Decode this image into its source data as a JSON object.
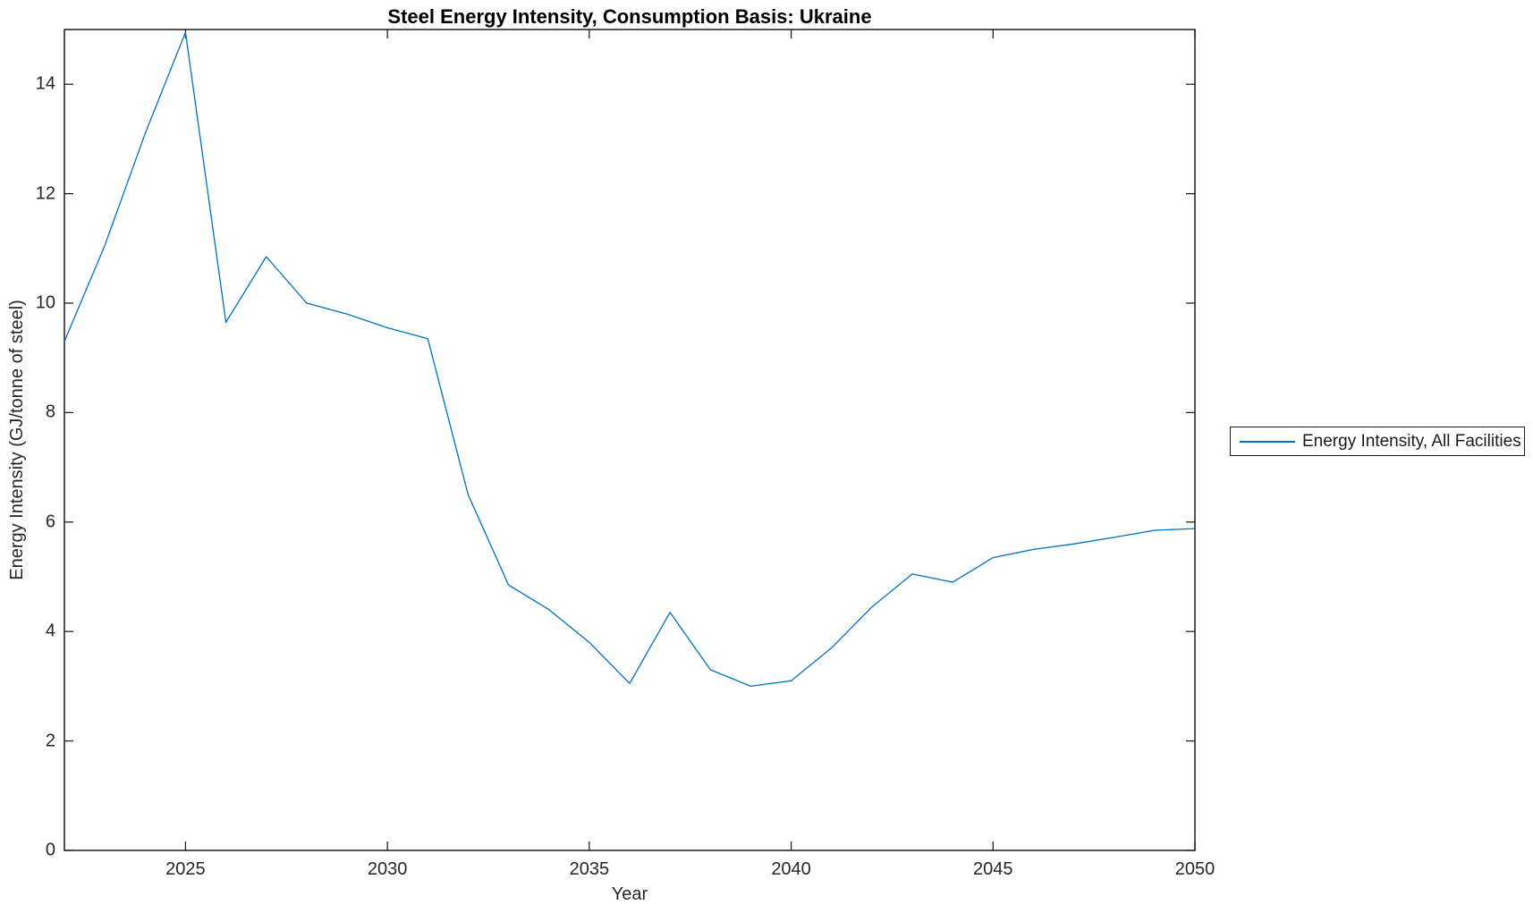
{
  "chart_data": {
    "type": "line",
    "title": "Steel Energy Intensity, Consumption Basis: Ukraine",
    "xlabel": "Year",
    "ylabel": "Energy Intensity (GJ/tonne of steel)",
    "xlim": [
      2022,
      2050
    ],
    "ylim": [
      0,
      15
    ],
    "xticks": [
      2025,
      2030,
      2035,
      2040,
      2045,
      2050
    ],
    "yticks": [
      0,
      2,
      4,
      6,
      8,
      10,
      12,
      14
    ],
    "grid": false,
    "legend_position": "right-outside",
    "x": [
      2022,
      2023,
      2024,
      2025,
      2026,
      2027,
      2028,
      2029,
      2030,
      2031,
      2032,
      2033,
      2034,
      2035,
      2036,
      2037,
      2038,
      2039,
      2040,
      2041,
      2042,
      2043,
      2044,
      2045,
      2046,
      2047,
      2048,
      2049,
      2050
    ],
    "series": [
      {
        "name": "Energy Intensity, All Facilities",
        "color": "#0072BD",
        "values": [
          9.3,
          11.05,
          13.1,
          14.95,
          9.65,
          10.85,
          10.0,
          9.8,
          9.55,
          9.35,
          6.5,
          4.85,
          4.4,
          3.8,
          3.05,
          4.35,
          3.3,
          3.0,
          3.1,
          3.7,
          4.45,
          5.05,
          4.9,
          5.35,
          5.5,
          5.6,
          5.72,
          5.85,
          5.88
        ]
      }
    ]
  },
  "colors": {
    "axis": "#1a1a1a",
    "text": "#262626",
    "background": "#ffffff"
  }
}
